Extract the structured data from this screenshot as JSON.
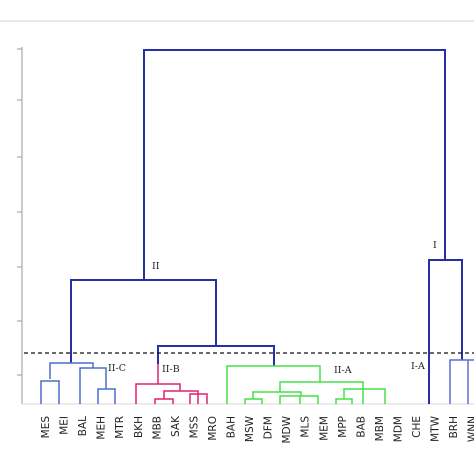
{
  "dendrogram": {
    "leaves": [
      "MES",
      "MEI",
      "BAL",
      "MEH",
      "MTR",
      "BKH",
      "MBB",
      "SAK",
      "MSS",
      "MRO",
      "BAH",
      "MSW",
      "DFM",
      "MDW",
      "MLS",
      "MEM",
      "MPP",
      "BAB",
      "MBM",
      "MDM",
      "CHE",
      "MTW",
      "BRH",
      "WNN"
    ],
    "clusters": {
      "I": "I",
      "IA": "I-A",
      "II": "II",
      "IIA": "II-A",
      "IIB": "II-B",
      "IIC": "II-C"
    },
    "colors": {
      "main_tree": "#2530a8",
      "group_IIC": "#4a6fc8",
      "group_IIB": "#e0206f",
      "group_IIA": "#46e046",
      "group_IA": "#5a6fd0",
      "cutoff_line": "#111111",
      "axis": "#9a9a9a"
    },
    "cutoff_style": "dashed"
  }
}
